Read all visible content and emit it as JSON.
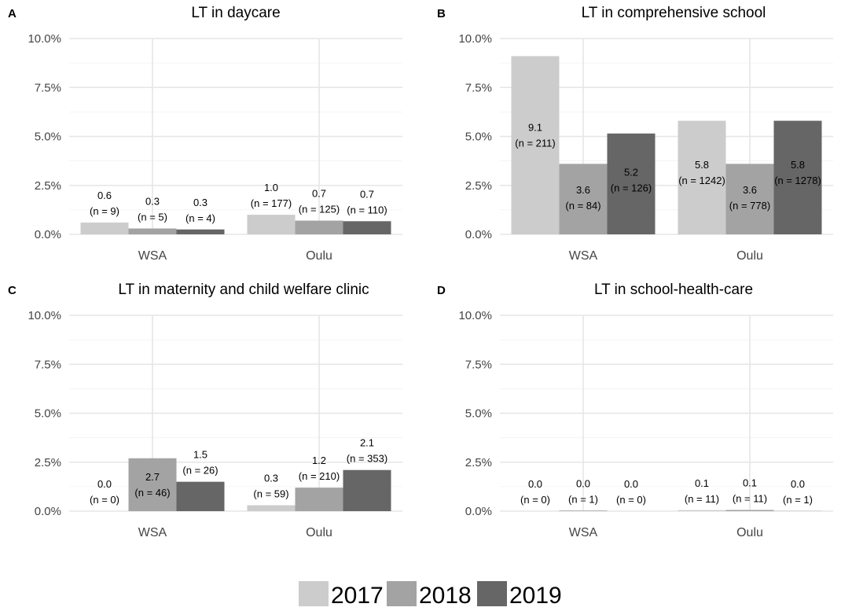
{
  "legend": [
    {
      "label": "2017",
      "color": "#cccccc"
    },
    {
      "label": "2018",
      "color": "#a3a3a3"
    },
    {
      "label": "2019",
      "color": "#666666"
    }
  ],
  "chart_data": [
    {
      "type": "bar",
      "panel": "A",
      "title": "LT in daycare",
      "categories": [
        "WSA",
        "Oulu"
      ],
      "ylim": [
        0,
        10
      ],
      "yticks": [
        "0.0%",
        "2.5%",
        "5.0%",
        "7.5%",
        "10.0%"
      ],
      "series": [
        {
          "name": "2017",
          "values": [
            0.6,
            1.0
          ],
          "labels": [
            "0.6",
            "1.0"
          ],
          "n": [
            "(n = 9)",
            "(n = 177)"
          ]
        },
        {
          "name": "2018",
          "values": [
            0.3,
            0.7
          ],
          "labels": [
            "0.3",
            "0.7"
          ],
          "n": [
            "(n = 5)",
            "(n = 125)"
          ]
        },
        {
          "name": "2019",
          "values": [
            0.25,
            0.67
          ],
          "labels": [
            "0.3",
            "0.7"
          ],
          "n": [
            "(n = 4)",
            "(n = 110)"
          ]
        }
      ]
    },
    {
      "type": "bar",
      "panel": "B",
      "title": "LT in comprehensive school",
      "categories": [
        "WSA",
        "Oulu"
      ],
      "ylim": [
        0,
        10
      ],
      "yticks": [
        "0.0%",
        "2.5%",
        "5.0%",
        "7.5%",
        "10.0%"
      ],
      "series": [
        {
          "name": "2017",
          "values": [
            9.1,
            5.8
          ],
          "labels": [
            "9.1",
            "5.8"
          ],
          "n": [
            "(n = 211)",
            "(n = 1242)"
          ]
        },
        {
          "name": "2018",
          "values": [
            3.6,
            3.6
          ],
          "labels": [
            "3.6",
            "3.6"
          ],
          "n": [
            "(n = 84)",
            "(n = 778)"
          ]
        },
        {
          "name": "2019",
          "values": [
            5.15,
            5.8
          ],
          "labels": [
            "5.2",
            "5.8"
          ],
          "n": [
            "(n = 126)",
            "(n = 1278)"
          ]
        }
      ]
    },
    {
      "type": "bar",
      "panel": "C",
      "title": "LT in maternity and child welfare clinic",
      "categories": [
        "WSA",
        "Oulu"
      ],
      "ylim": [
        0,
        10
      ],
      "yticks": [
        "0.0%",
        "2.5%",
        "5.0%",
        "7.5%",
        "10.0%"
      ],
      "series": [
        {
          "name": "2017",
          "values": [
            0.0,
            0.3
          ],
          "labels": [
            "0.0",
            "0.3"
          ],
          "n": [
            "(n = 0)",
            "(n = 59)"
          ]
        },
        {
          "name": "2018",
          "values": [
            2.7,
            1.2
          ],
          "labels": [
            "2.7",
            "1.2"
          ],
          "n": [
            "(n = 46)",
            "(n = 210)"
          ]
        },
        {
          "name": "2019",
          "values": [
            1.5,
            2.1
          ],
          "labels": [
            "1.5",
            "2.1"
          ],
          "n": [
            "(n = 26)",
            "(n = 353)"
          ]
        }
      ]
    },
    {
      "type": "bar",
      "panel": "D",
      "title": "LT in school-health-care",
      "categories": [
        "WSA",
        "Oulu"
      ],
      "ylim": [
        0,
        10
      ],
      "yticks": [
        "0.0%",
        "2.5%",
        "5.0%",
        "7.5%",
        "10.0%"
      ],
      "series": [
        {
          "name": "2017",
          "values": [
            0.0,
            0.05
          ],
          "labels": [
            "0.0",
            "0.1"
          ],
          "n": [
            "(n = 0)",
            "(n = 11)"
          ]
        },
        {
          "name": "2018",
          "values": [
            0.03,
            0.06
          ],
          "labels": [
            "0.0",
            "0.1"
          ],
          "n": [
            "(n = 1)",
            "(n = 11)"
          ]
        },
        {
          "name": "2019",
          "values": [
            0.0,
            0.005
          ],
          "labels": [
            "0.0",
            "0.0"
          ],
          "n": [
            "(n = 0)",
            "(n = 1)"
          ]
        }
      ]
    }
  ]
}
